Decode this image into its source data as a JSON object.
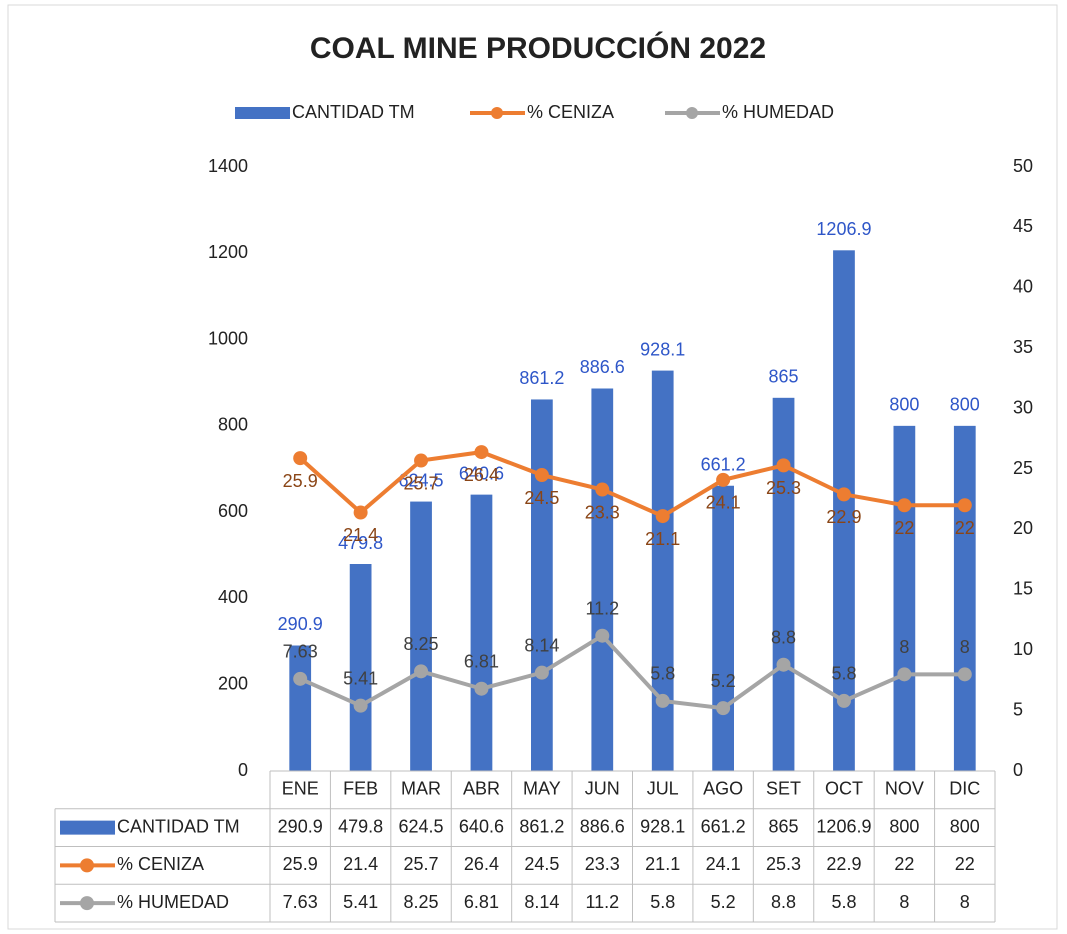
{
  "chart_data": {
    "type": "bar",
    "title": "COAL MINE PRODUCCIÓN 2022",
    "categories": [
      "ENE",
      "FEB",
      "MAR",
      "ABR",
      "MAY",
      "JUN",
      "JUL",
      "AGO",
      "SET",
      "OCT",
      "NOV",
      "DIC"
    ],
    "series": [
      {
        "name": "CANTIDAD TM",
        "type": "bar",
        "color": "#4472c4",
        "label_color": "#2e56c8",
        "values": [
          290.9,
          479.8,
          624.5,
          640.6,
          861.2,
          886.6,
          928.1,
          661.2,
          865,
          1206.9,
          800,
          800
        ]
      },
      {
        "name": "% CENIZA",
        "type": "line",
        "axis": "y2",
        "color": "#ed7d31",
        "label_color": "#8a4516",
        "values": [
          25.9,
          21.4,
          25.7,
          26.4,
          24.5,
          23.3,
          21.1,
          24.1,
          25.3,
          22.9,
          22,
          22
        ]
      },
      {
        "name": "% HUMEDAD",
        "type": "line",
        "axis": "y2",
        "color": "#a5a5a5",
        "label_color": "#404040",
        "values": [
          7.63,
          5.41,
          8.25,
          6.81,
          8.14,
          11.2,
          5.8,
          5.2,
          8.8,
          5.8,
          8,
          8
        ]
      }
    ],
    "ylim": [
      0,
      1400
    ],
    "yticks": [
      0,
      200,
      400,
      600,
      800,
      1000,
      1200,
      1400
    ],
    "y2lim": [
      0,
      50
    ],
    "y2ticks": [
      0,
      5,
      10,
      15,
      20,
      25,
      30,
      35,
      40,
      45,
      50
    ],
    "grid": false,
    "legend": "top",
    "data_table": true
  }
}
